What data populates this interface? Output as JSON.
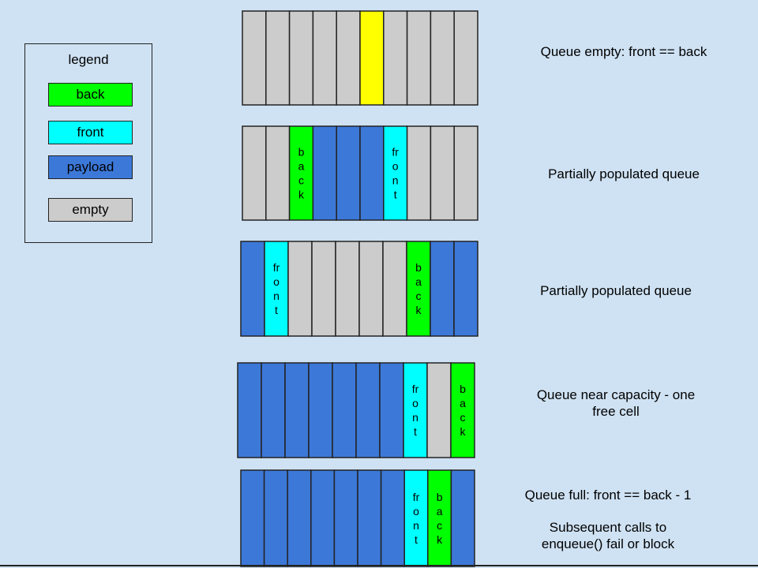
{
  "colors": {
    "background": "#cfe2f3",
    "empty": "#cccccc",
    "payload": "#3c78d8",
    "front": "#00ffff",
    "back": "#00ff00",
    "marker": "#ffff00"
  },
  "legend": {
    "title": "legend",
    "items": [
      {
        "label": "back",
        "color": "#00ff00"
      },
      {
        "label": "front",
        "color": "#00ffff"
      },
      {
        "label": "payload",
        "color": "#3c78d8"
      },
      {
        "label": "empty",
        "color": "#cccccc"
      }
    ]
  },
  "queues": [
    {
      "cells": [
        "empty",
        "empty",
        "empty",
        "empty",
        "empty",
        "marker",
        "empty",
        "empty",
        "empty",
        "empty"
      ]
    },
    {
      "cells": [
        "empty",
        "empty",
        "back",
        "payload",
        "payload",
        "payload",
        "front",
        "empty",
        "empty",
        "empty"
      ]
    },
    {
      "cells": [
        "payload",
        "front",
        "empty",
        "empty",
        "empty",
        "empty",
        "empty",
        "back",
        "payload",
        "payload"
      ]
    },
    {
      "cells": [
        "payload",
        "payload",
        "payload",
        "payload",
        "payload",
        "payload",
        "payload",
        "front",
        "empty",
        "back"
      ]
    },
    {
      "cells": [
        "payload",
        "payload",
        "payload",
        "payload",
        "payload",
        "payload",
        "payload",
        "front",
        "back",
        "payload"
      ]
    }
  ],
  "cell_labels": {
    "front": [
      "fr",
      "o",
      "n",
      "t"
    ],
    "back": [
      "b",
      "a",
      "c",
      "k"
    ]
  },
  "captions": [
    "Queue empty: front == back",
    "Partially populated queue",
    "Partially populated queue",
    "Queue near capacity - one\nfree cell",
    "Queue full: front == back - 1",
    "Subsequent calls to\nenqueue() fail or block"
  ]
}
